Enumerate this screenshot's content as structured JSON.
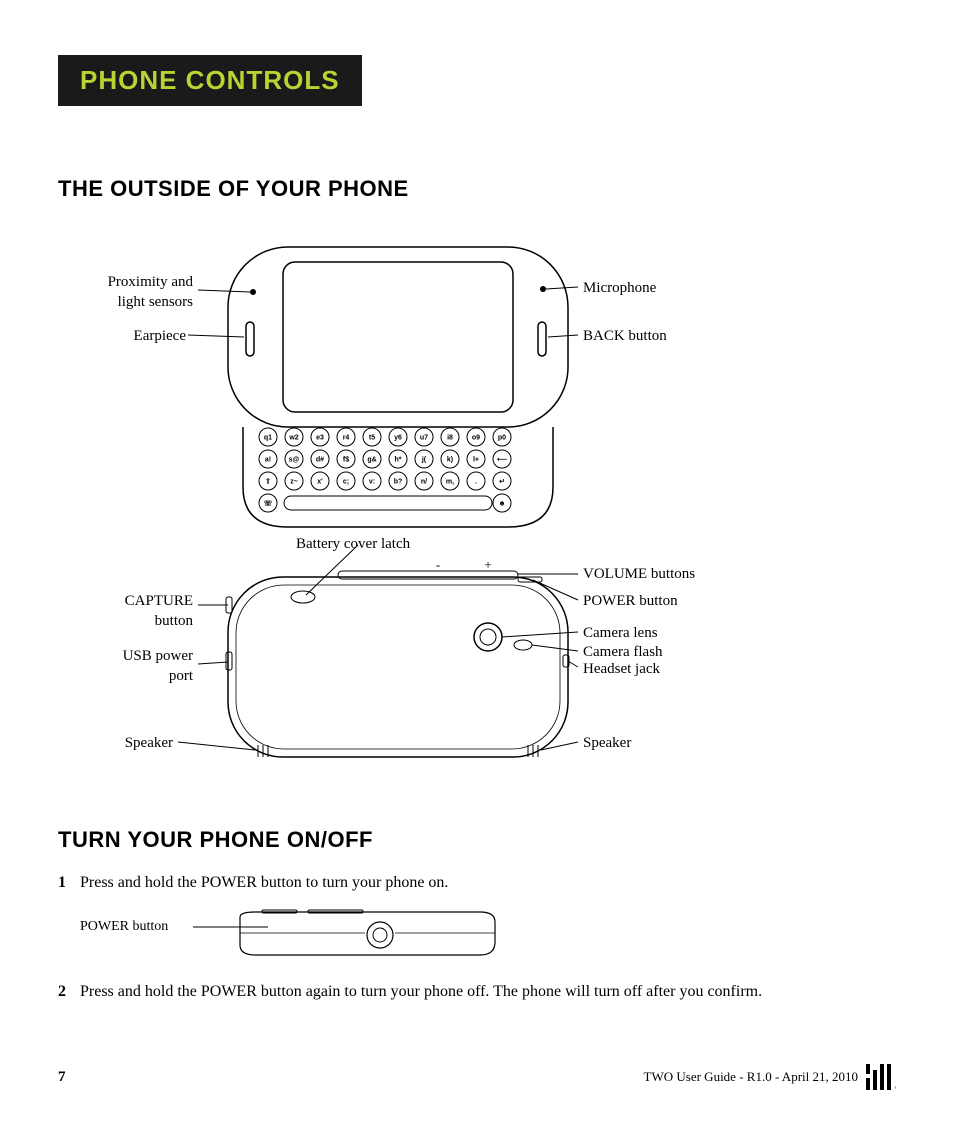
{
  "header": {
    "title": "PHONE CONTROLS"
  },
  "section1": {
    "heading": "THE OUTSIDE OF YOUR PHONE",
    "labels": {
      "proximity": "Proximity and\nlight sensors",
      "earpiece": "Earpiece",
      "microphone": "Microphone",
      "back": "BACK button",
      "battery": "Battery cover latch",
      "capture": "CAPTURE\nbutton",
      "usb": "USB power\nport",
      "speaker_l": "Speaker",
      "volume": "VOLUME buttons",
      "power": "POWER button",
      "camera_lens": "Camera lens",
      "camera_flash": "Camera flash",
      "headset": "Headset jack",
      "speaker_r": "Speaker",
      "minus": "-",
      "plus": "+"
    },
    "keyboard": {
      "row1": [
        "q1",
        "w2",
        "e3",
        "r4",
        "t5",
        "y6",
        "u7",
        "i8",
        "o9",
        "p0"
      ],
      "row2": [
        "a!",
        "s@",
        "d#",
        "f$",
        "g&",
        "h*",
        "j(",
        "k)",
        "l+",
        "⟵"
      ],
      "row3": [
        "⇧",
        "z~",
        "x'",
        "c;",
        "v:",
        "b?",
        "n/",
        "m,",
        ".",
        "↵"
      ],
      "row4": [
        "☏",
        "",
        "",
        "",
        "",
        "",
        "",
        "",
        "",
        "☻"
      ]
    }
  },
  "section2": {
    "heading": "TURN YOUR PHONE ON/OFF",
    "steps": [
      {
        "num": "1",
        "text": "Press and hold the POWER button to turn your phone on."
      },
      {
        "num": "2",
        "text": "Press and hold the POWER button again to turn your phone off. The phone will turn off after you confirm."
      }
    ],
    "power_label": "POWER button"
  },
  "footer": {
    "page": "7",
    "doc": "TWO User Guide - R1.0 - April 21, 2010"
  },
  "colors": {
    "header_bg": "#1a1a1a",
    "header_fg": "#b8d432",
    "line": "#000000"
  }
}
